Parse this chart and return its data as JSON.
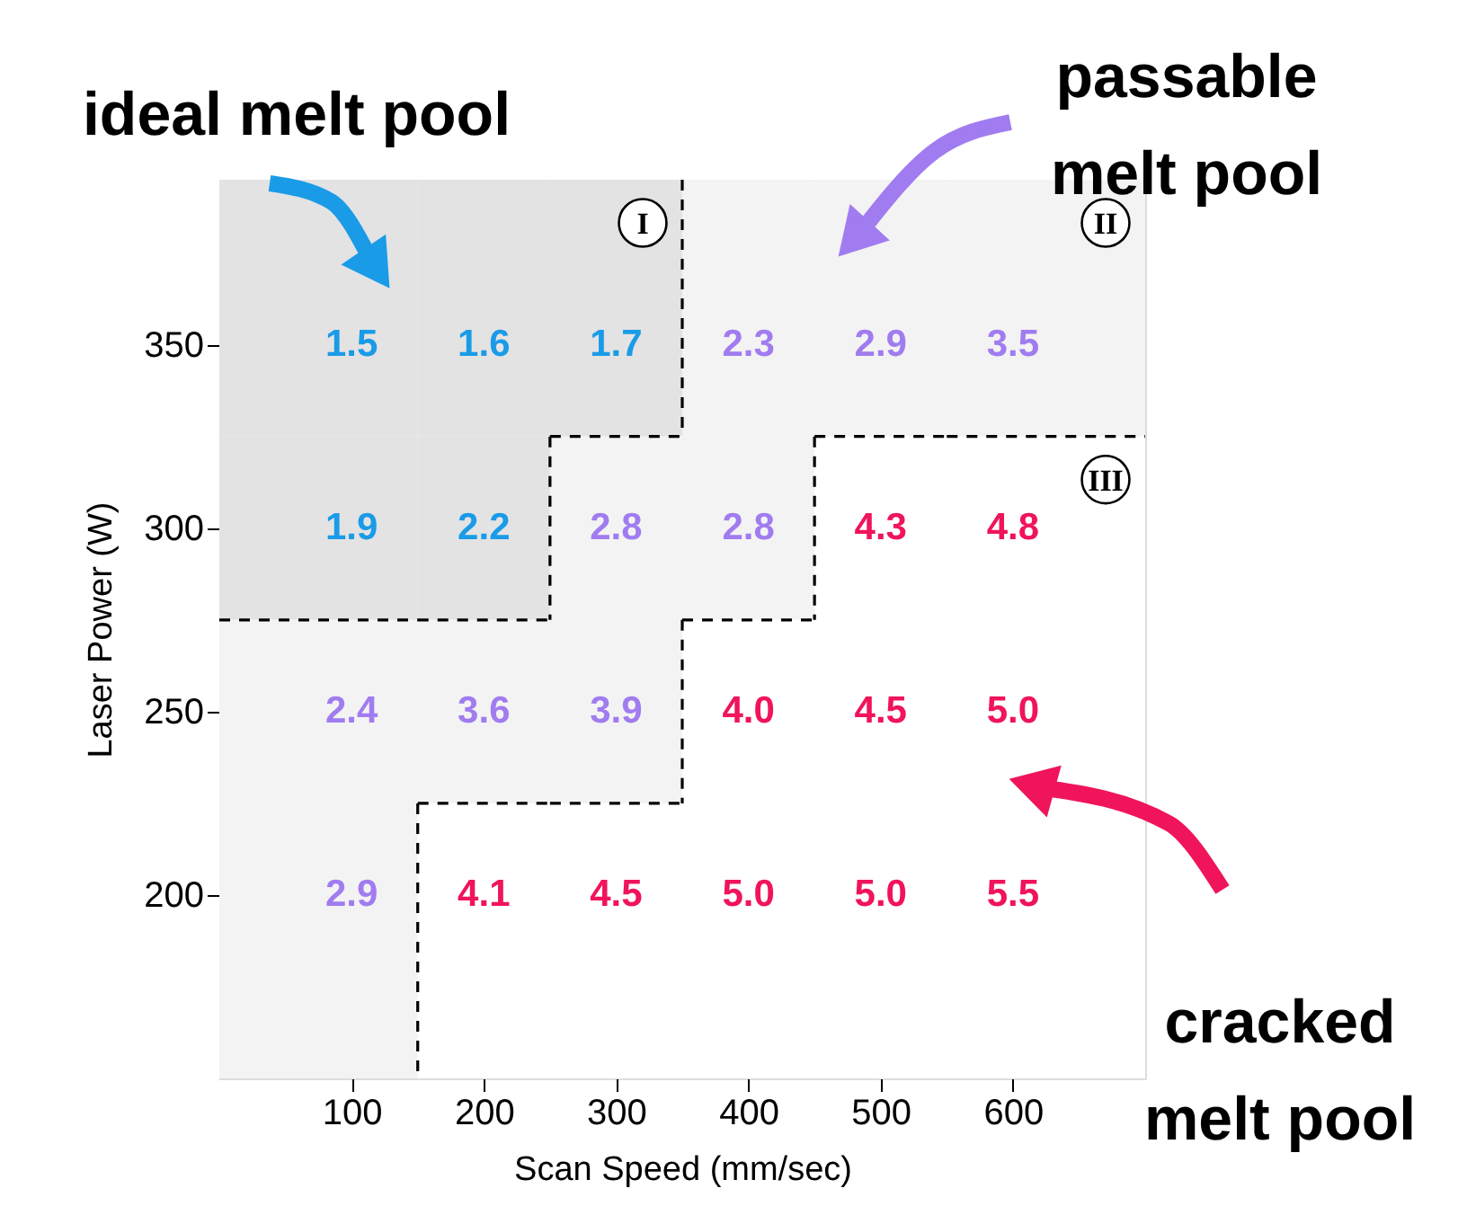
{
  "chart_data": {
    "type": "heatmap",
    "xlabel": "Scan Speed (mm/sec)",
    "ylabel": "Laser Power (W)",
    "categories": [
      "100",
      "200",
      "300",
      "400",
      "500",
      "600"
    ],
    "y_categories": [
      "350",
      "300",
      "250",
      "200"
    ],
    "cells": [
      [
        1.5,
        1.6,
        1.7,
        2.3,
        2.9,
        3.5
      ],
      [
        1.9,
        2.2,
        2.8,
        2.8,
        4.3,
        4.8
      ],
      [
        2.4,
        3.6,
        3.9,
        4.0,
        4.5,
        5.0
      ],
      [
        2.9,
        4.1,
        4.5,
        5.0,
        5.0,
        5.5
      ]
    ],
    "colors": [
      [
        "#1a9be8",
        "#1a9be8",
        "#1a9be8",
        "#a07cf0",
        "#a07cf0",
        "#a07cf0"
      ],
      [
        "#1a9be8",
        "#1a9be8",
        "#a07cf0",
        "#a07cf0",
        "#f0145a",
        "#f0145a"
      ],
      [
        "#a07cf0",
        "#a07cf0",
        "#a07cf0",
        "#f0145a",
        "#f0145a",
        "#f0145a"
      ],
      [
        "#a07cf0",
        "#f0145a",
        "#f0145a",
        "#f0145a",
        "#f0145a",
        "#f0145a"
      ]
    ],
    "cell_labels": [
      [
        "1.5",
        "1.6",
        "1.7",
        "2.3",
        "2.9",
        "3.5"
      ],
      [
        "1.9",
        "2.2",
        "2.8",
        "2.8",
        "4.3",
        "4.8"
      ],
      [
        "2.4",
        "3.6",
        "3.9",
        "4.0",
        "4.5",
        "5.0"
      ],
      [
        "2.9",
        "4.1",
        "4.5",
        "5.0",
        "5.0",
        "5.5"
      ]
    ],
    "data_labels": true,
    "annotations": [
      "I",
      "II",
      "III",
      "ideal melt pool",
      "passable\nmelt pool",
      "cracked\nmelt pool"
    ]
  }
}
